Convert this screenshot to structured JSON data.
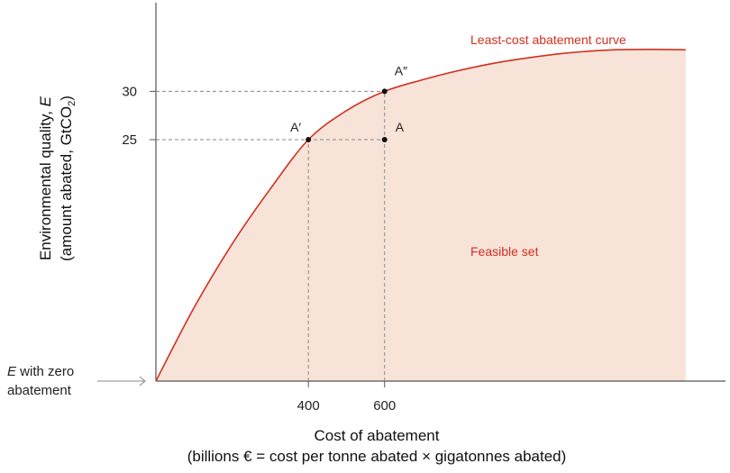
{
  "chart_data": {
    "type": "area",
    "title": "",
    "xlabel": "Cost of abatement",
    "xlabel_sub": "(billions € = cost per tonne abated × gigatonnes abated)",
    "ylabel_pre": "Environmental quality, ",
    "ylabel_var": "E",
    "ylabel_sub_pre": "(amount abated, GtCO",
    "ylabel_sub_num": "2",
    "ylabel_sub_post": ")",
    "x_ticks": [
      {
        "value": 400,
        "label": "400"
      },
      {
        "value": 600,
        "label": "600"
      }
    ],
    "y_ticks": [
      {
        "value": 25,
        "label": "25"
      },
      {
        "value": 30,
        "label": "30"
      }
    ],
    "xlim": [
      0,
      1430
    ],
    "ylim": [
      0,
      38
    ],
    "curve": {
      "name": "Least-cost abatement curve",
      "x": [
        0,
        100,
        200,
        300,
        400,
        500,
        600,
        700,
        800,
        900,
        1000,
        1100,
        1200,
        1300,
        1390
      ],
      "y": [
        0,
        7.6,
        14.2,
        19.9,
        25.0,
        28.0,
        30.0,
        31.2,
        32.2,
        33.0,
        33.6,
        34.05,
        34.3,
        34.35,
        34.3
      ],
      "color": "#d33020"
    },
    "feasible_set": {
      "label": "Feasible set",
      "fill": "#f8e3d9"
    },
    "points": [
      {
        "label": "A′",
        "x": 400,
        "y": 25
      },
      {
        "label": "A",
        "x": 600,
        "y": 25
      },
      {
        "label": "A″",
        "x": 600,
        "y": 30
      }
    ],
    "reference_lines": [
      {
        "from": "y-axis",
        "to": "A",
        "y": 25
      },
      {
        "from": "y-axis",
        "to": "A″",
        "y": 30
      },
      {
        "from": "x-axis",
        "to": "A′",
        "x": 400
      },
      {
        "from": "x-axis",
        "to": "A″",
        "x": 600
      }
    ],
    "y_origin_label": {
      "var": "E",
      "line1_rest": " with zero",
      "line2": "abatement"
    },
    "grid": false
  }
}
